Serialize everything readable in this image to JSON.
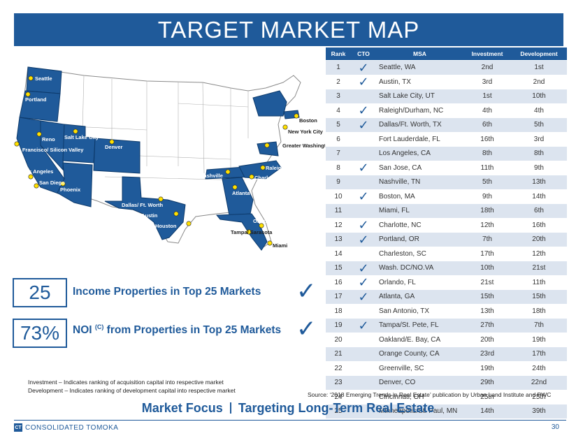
{
  "title": "TARGET MARKET MAP",
  "map": {
    "cities": [
      {
        "name": "Seattle"
      },
      {
        "name": "Portland"
      },
      {
        "name": "Reno"
      },
      {
        "name": "Salt Lake City"
      },
      {
        "name": "Denver"
      },
      {
        "name": "San Francisco/\nSilicon Valley"
      },
      {
        "name": "Los Angeles"
      },
      {
        "name": "San Diego"
      },
      {
        "name": "Phoenix"
      },
      {
        "name": "Dallas/ Ft. Worth"
      },
      {
        "name": "Austin"
      },
      {
        "name": "Houston"
      },
      {
        "name": "Nashville"
      },
      {
        "name": "Atlanta"
      },
      {
        "name": "Charlotte"
      },
      {
        "name": "Raleigh"
      },
      {
        "name": "Greater Washington DC Area"
      },
      {
        "name": "New York City"
      },
      {
        "name": "Boston"
      },
      {
        "name": "Orlando"
      },
      {
        "name": "Tampa/ Sarasota"
      },
      {
        "name": "Miami"
      }
    ]
  },
  "table": {
    "headers": {
      "rank": "Rank",
      "cto": "CTO",
      "msa": "MSA",
      "investment": "Investment",
      "development": "Development"
    },
    "rows": [
      {
        "rank": "1",
        "cto": true,
        "msa": "Seattle, WA",
        "investment": "2nd",
        "development": "1st"
      },
      {
        "rank": "2",
        "cto": true,
        "msa": "Austin, TX",
        "investment": "3rd",
        "development": "2nd"
      },
      {
        "rank": "3",
        "cto": false,
        "msa": "Salt Lake City, UT",
        "investment": "1st",
        "development": "10th"
      },
      {
        "rank": "4",
        "cto": true,
        "msa": "Raleigh/Durham, NC",
        "investment": "4th",
        "development": "4th"
      },
      {
        "rank": "5",
        "cto": true,
        "msa": "Dallas/Ft. Worth, TX",
        "investment": "6th",
        "development": "5th"
      },
      {
        "rank": "6",
        "cto": false,
        "msa": "Fort Lauderdale, FL",
        "investment": "16th",
        "development": "3rd"
      },
      {
        "rank": "7",
        "cto": false,
        "msa": "Los Angeles, CA",
        "investment": "8th",
        "development": "8th"
      },
      {
        "rank": "8",
        "cto": true,
        "msa": "San Jose, CA",
        "investment": "11th",
        "development": "9th"
      },
      {
        "rank": "9",
        "cto": false,
        "msa": "Nashville, TN",
        "investment": "5th",
        "development": "13th"
      },
      {
        "rank": "10",
        "cto": true,
        "msa": "Boston, MA",
        "investment": "9th",
        "development": "14th"
      },
      {
        "rank": "11",
        "cto": false,
        "msa": "Miami, FL",
        "investment": "18th",
        "development": "6th"
      },
      {
        "rank": "12",
        "cto": true,
        "msa": "Charlotte, NC",
        "investment": "12th",
        "development": "16th"
      },
      {
        "rank": "13",
        "cto": true,
        "msa": "Portland, OR",
        "investment": "7th",
        "development": "20th"
      },
      {
        "rank": "14",
        "cto": false,
        "msa": "Charleston, SC",
        "investment": "17th",
        "development": "12th"
      },
      {
        "rank": "15",
        "cto": true,
        "msa": "Wash. DC/NO.VA",
        "investment": "10th",
        "development": "21st"
      },
      {
        "rank": "16",
        "cto": true,
        "msa": "Orlando, FL",
        "investment": "21st",
        "development": "11th"
      },
      {
        "rank": "17",
        "cto": true,
        "msa": "Atlanta, GA",
        "investment": "15th",
        "development": "15th"
      },
      {
        "rank": "18",
        "cto": false,
        "msa": "San Antonio, TX",
        "investment": "13th",
        "development": "18th"
      },
      {
        "rank": "19",
        "cto": true,
        "msa": "Tampa/St. Pete, FL",
        "investment": "27th",
        "development": "7th"
      },
      {
        "rank": "20",
        "cto": false,
        "msa": "Oakland/E. Bay, CA",
        "investment": "20th",
        "development": "19th"
      },
      {
        "rank": "21",
        "cto": false,
        "msa": "Orange County, CA",
        "investment": "23rd",
        "development": "17th"
      },
      {
        "rank": "22",
        "cto": false,
        "msa": "Greenville, SC",
        "investment": "19th",
        "development": "24th"
      },
      {
        "rank": "23",
        "cto": false,
        "msa": "Denver, CO",
        "investment": "29th",
        "development": "22nd"
      },
      {
        "rank": "24",
        "cto": false,
        "msa": "Cincinnati, OH",
        "investment": "25th",
        "development": "25th"
      },
      {
        "rank": "25",
        "cto": false,
        "msa": "Minneapolis/St. Paul, MN",
        "investment": "14th",
        "development": "39th"
      }
    ]
  },
  "stats": [
    {
      "value": "25",
      "label": "Income Properties in Top 25 Markets"
    },
    {
      "value": "73%",
      "label_pre": "NOI ",
      "label_sup": "(C)",
      "label_post": " from Properties in Top 25 Markets"
    }
  ],
  "notes": {
    "investment": "Investment – Indicates ranking of acquisition capital into respective market",
    "development": "Development – Indicates ranking of development capital into respective market"
  },
  "source": "Source: ‘2018 Emerging Trends in Real Estate’ publication by Urban Land Institute and PWC",
  "footer": {
    "focus_left": "Market Focus",
    "focus_right": "Targeting Long-Term Real Estate",
    "company": "CONSOLIDATED TOMOKA",
    "logo_mark": "CT",
    "page": "30"
  },
  "colors": {
    "accent": "#1f5a9a",
    "row_shade": "#dce4ef",
    "city_dot": "#ffe000"
  }
}
